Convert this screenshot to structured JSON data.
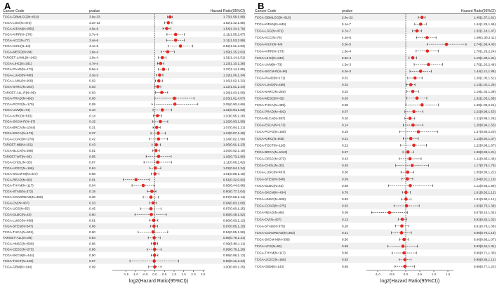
{
  "chart_data": [
    {
      "type": "forest",
      "panel": "A",
      "headers": {
        "name": "Cancer Code",
        "pvalue": "pvalue",
        "hr": "Hazard Ratio(95%CI)"
      },
      "xlabel": "log2(Hazard Ratio(95%CI))",
      "xlim": [
        -2.2,
        2.6
      ],
      "xticks": [
        "-1.5",
        "-1.0",
        "-0.5",
        "0.0",
        "0.5",
        "1.0",
        "1.5",
        "2.0",
        "2.5"
      ],
      "rows": [
        {
          "name": "TCGA-GBMLGG(N=619)",
          "p": "3.9e-33",
          "hr": "1.73(1.58,1.89)",
          "est": 0.79,
          "lo": 0.66,
          "hi": 0.92
        },
        {
          "name": "TCGA-LGG(N=474)",
          "p": "3.2e-13",
          "hr": "1.62(1.42,1.85)",
          "est": 0.7,
          "lo": 0.51,
          "hi": 0.89
        },
        {
          "name": "TCGA-KIPAN(N=855)",
          "p": "4.9e-9",
          "hr": "1.54(1.34,1.78)",
          "est": 0.62,
          "lo": 0.42,
          "hi": 0.83
        },
        {
          "name": "TCGA-KIRP(N=276)",
          "p": "2.7e-6",
          "hr": "2.11(1.55,2.87)",
          "est": 1.08,
          "lo": 0.63,
          "hi": 1.52
        },
        {
          "name": "TCGA-ACC(N=77)",
          "p": "3.4e-6",
          "hr": "2.11(1.53,2.89)",
          "est": 1.08,
          "lo": 0.61,
          "hi": 1.53
        },
        {
          "name": "TCGA-KICH(N=64)",
          "p": "4.1e-5",
          "hr": "2.52(1.61,3.93)",
          "est": 1.33,
          "lo": 0.69,
          "hi": 1.97
        },
        {
          "name": "TCGA-MESO(N=84)",
          "p": "1.6e-4",
          "hr": "1.59(1.25,2.02)",
          "est": 0.67,
          "lo": 0.32,
          "hi": 1.01
        },
        {
          "name": "TARGET-LAML(N=142)",
          "p": "1.9e-4",
          "hr": "1.31(1.14,1.51)",
          "est": 0.39,
          "lo": 0.19,
          "hi": 0.59
        },
        {
          "name": "TCGA-LIHC(N=341)",
          "p": "4.7e-4",
          "hr": "1.23(1.10,1.38)",
          "est": 0.3,
          "lo": 0.14,
          "hi": 0.46
        },
        {
          "name": "TCGA-PAAD(N=172)",
          "p": "9.6e-4",
          "hr": "1.37(1.14,1.65)",
          "est": 0.45,
          "lo": 0.19,
          "hi": 0.72
        },
        {
          "name": "TCGA-LUAD(N=490)",
          "p": "3.3e-3",
          "hr": "1.19(1.06,1.34)",
          "est": 0.25,
          "lo": 0.08,
          "hi": 0.42
        },
        {
          "name": "TCGA-LAML(N=209)",
          "p": "0.02",
          "hr": "1.16(1.02,1.32)",
          "est": 0.21,
          "lo": 0.03,
          "hi": 0.4
        },
        {
          "name": "TCGA-SARC(N=254)",
          "p": "0.03",
          "hr": "1.12(1.01,1.24)",
          "est": 0.16,
          "lo": 0.01,
          "hi": 0.31
        },
        {
          "name": "TARGET-ALL-R(N=99)",
          "p": "0.03",
          "hr": "1.28(1.03,1.59)",
          "est": 0.36,
          "lo": 0.04,
          "hi": 0.67
        },
        {
          "name": "TCGA-PRAD(N=492)",
          "p": "0.06",
          "hr": "2.03(1.01,4.07)",
          "est": 1.02,
          "lo": 0.01,
          "hi": 2.03
        },
        {
          "name": "TCGA-PCPG(N=170)",
          "p": "0.09",
          "hr": "2.05(0.90,4.69)",
          "est": 1.04,
          "lo": -0.15,
          "hi": 2.23
        },
        {
          "name": "TCGA-UVM(N=74)",
          "p": "0.10",
          "hr": "1.31(0.94,1.83)",
          "est": 0.39,
          "lo": -0.09,
          "hi": 0.87
        },
        {
          "name": "TCGA-KIRC(N=515)",
          "p": "0.14",
          "hr": "1.10(0.95,1.28)",
          "est": 0.14,
          "lo": -0.07,
          "hi": 0.36
        },
        {
          "name": "TCGA-SKCM-P(N=97)",
          "p": "0.15",
          "hr": "1.22(0.93,1.59)",
          "est": 0.29,
          "lo": -0.1,
          "hi": 0.67
        },
        {
          "name": "TCGA-BRCA(N=1044)",
          "p": "0.31",
          "hr": "1.07(0.94,1.21)",
          "est": 0.1,
          "lo": -0.09,
          "hi": 0.28
        },
        {
          "name": "TCGA-ESCA(N=175)",
          "p": "0.37",
          "hr": "1.13(0.87,1.46)",
          "est": 0.18,
          "lo": -0.2,
          "hi": 0.55
        },
        {
          "name": "TCGA-COAD(N=278)",
          "p": "0.42",
          "hr": "1.14(0.82,1.58)",
          "est": 0.19,
          "lo": -0.29,
          "hi": 0.66
        },
        {
          "name": "TARGET-NB(N=151)",
          "p": "0.43",
          "hr": "1.06(0.91,1.23)",
          "est": 0.08,
          "lo": -0.14,
          "hi": 0.3
        },
        {
          "name": "TCGA-BLCA(N=398)",
          "p": "0.51",
          "hr": "1.04(0.92,1.18)",
          "est": 0.06,
          "lo": -0.12,
          "hi": 0.24
        },
        {
          "name": "TARGET-WT(N=80)",
          "p": "0.55",
          "hr": "1.15(0.73,1.80)",
          "est": 0.2,
          "lo": -0.45,
          "hi": 0.85
        },
        {
          "name": "TCGA-CHOL(N=33)",
          "p": "0.67",
          "hr": "1.11(0.68,1.82)",
          "est": 0.15,
          "lo": -0.56,
          "hi": 0.86
        },
        {
          "name": "TCGA-UCEC(N=166)",
          "p": "0.84",
          "hr": "1.02(0.84,1.24)",
          "est": 0.03,
          "lo": -0.25,
          "hi": 0.31
        },
        {
          "name": "TCGA-SKCM-M(N=347)",
          "p": "0.88",
          "hr": "1.01(0.88,1.16)",
          "est": 0.01,
          "lo": -0.18,
          "hi": 0.21
        },
        {
          "name": "TCGA-READ(N=90)",
          "p": "0.01",
          "hr": "0.51(0.32,0.82)",
          "est": -0.97,
          "lo": -1.64,
          "hi": -0.29
        },
        {
          "name": "TCGA-THYM(N=117)",
          "p": "0.04",
          "hr": "0.66(0.44,0.98)",
          "est": -0.6,
          "lo": -1.18,
          "hi": -0.03
        },
        {
          "name": "TCGA-STAD(N=372)",
          "p": "0.18",
          "hr": "0.90(0.77,1.04)",
          "est": -0.15,
          "lo": -0.38,
          "hi": 0.06
        },
        {
          "name": "TCGA-COADREAD(N=368)",
          "p": "0.30",
          "hr": "0.87(0.66,1.14)",
          "est": -0.2,
          "lo": -0.6,
          "hi": 0.19
        },
        {
          "name": "TCGA-OV(N=407)",
          "p": "0.33",
          "hr": "0.94(0.83,1.06)",
          "est": -0.09,
          "lo": -0.27,
          "hi": 0.08
        },
        {
          "name": "TCGA-UCS(N=55)",
          "p": "0.45",
          "hr": "0.87(0.60,1.25)",
          "est": -0.2,
          "lo": -0.74,
          "hi": 0.32
        },
        {
          "name": "TCGA-DLBC(N=44)",
          "p": "0.60",
          "hr": "0.88(0.49,1.52)",
          "est": -0.18,
          "lo": -1.03,
          "hi": 0.6
        },
        {
          "name": "TCGA-LUSC(N=468)",
          "p": "0.61",
          "hr": "0.96(0.83,1.12)",
          "est": -0.06,
          "lo": -0.27,
          "hi": 0.16
        },
        {
          "name": "TCGA-STES(N=547)",
          "p": "0.66",
          "hr": "0.97(0.85,1.10)",
          "est": -0.04,
          "lo": -0.23,
          "hi": 0.14
        },
        {
          "name": "TCGA-THCA(N=501)",
          "p": "0.80",
          "hr": "0.94(0.55,1.59)",
          "est": -0.09,
          "lo": -0.86,
          "hi": 0.67
        },
        {
          "name": "TARGET-ALL(N=86)",
          "p": "0.84",
          "hr": "0.98(0.79,1.21)",
          "est": -0.03,
          "lo": -0.34,
          "hi": 0.28
        },
        {
          "name": "TCGA-HNSC(N=509)",
          "p": "0.86",
          "hr": "0.99(0.88,1.11)",
          "est": -0.01,
          "lo": -0.18,
          "hi": 0.15
        },
        {
          "name": "TCGA-CESC(N=273)",
          "p": "0.88",
          "hr": "0.99(0.76,1.26)",
          "est": -0.01,
          "lo": -0.4,
          "hi": 0.33
        },
        {
          "name": "TCGA-SKCM(N=444)",
          "p": "0.90",
          "hr": "0.99(0.88,1.12)",
          "est": -0.01,
          "lo": -0.18,
          "hi": 0.16
        },
        {
          "name": "TCGA-TGCT(N=128)",
          "p": "0.97",
          "hr": "0.98(0.41,2.34)",
          "est": -0.03,
          "lo": -1.29,
          "hi": 1.23
        },
        {
          "name": "TCGA-GBM(N=144)",
          "p": "0.99",
          "hr": "1.00(0.80,1.25)",
          "est": 0.0,
          "lo": -0.32,
          "hi": 0.32
        }
      ]
    },
    {
      "type": "forest",
      "panel": "B",
      "headers": {
        "name": "Cancer Code",
        "pvalue": "pvalue",
        "hr": "Hazard Ratio(95%CI)"
      },
      "xlabel": "log2(Hazard Ratio(95%CI))",
      "xlim": [
        -1.4,
        1.7
      ],
      "xticks": [
        "-1.0",
        "-0.5",
        "0.0",
        "0.5",
        "1.0",
        "1.5"
      ],
      "rows": [
        {
          "name": "TCGA-GBMLGG(N=616)",
          "p": "2.9e-22",
          "hr": "1.49(1.37,1.61)",
          "est": 0.58,
          "lo": 0.45,
          "hi": 0.69
        },
        {
          "name": "TCGA-KIPAN(N=845)",
          "p": "5.1e-7",
          "hr": "1.44(1.25,1.66)",
          "est": 0.53,
          "lo": 0.32,
          "hi": 0.73
        },
        {
          "name": "TCGA-LGG(N=472)",
          "p": "6.7e-7",
          "hr": "1.32(1.18,1.47)",
          "est": 0.4,
          "lo": 0.24,
          "hi": 0.56
        },
        {
          "name": "TCGA-ACC(N=76)",
          "p": "4.2e-5",
          "hr": "1.69(1.30,2.11)",
          "est": 0.76,
          "lo": 0.38,
          "hi": 1.08
        },
        {
          "name": "TCGA-KICH(N=64)",
          "p": "5.3e-5",
          "hr": "2.74(1.69,4.43)",
          "est": 1.45,
          "lo": 0.76,
          "hi": 2.15
        },
        {
          "name": "TCGA-KIRP(N=273)",
          "p": "1.8e-4",
          "hr": "1.70(1.29,2.24)",
          "est": 0.77,
          "lo": 0.37,
          "hi": 1.16
        },
        {
          "name": "TCGA-LIHC(N=340)",
          "p": "5.8e-4",
          "hr": "1.19(1.08,1.31)",
          "est": 0.25,
          "lo": 0.11,
          "hi": 0.39
        },
        {
          "name": "TCGA-UVM(N=73)",
          "p": "1.3e-3",
          "hr": "1.75(1.23,2.48)",
          "est": 0.81,
          "lo": 0.3,
          "hi": 1.31
        },
        {
          "name": "TCGA-SKCM-P(N=96)",
          "p": "6.2e-3",
          "hr": "1.44(1.11,1.88)",
          "est": 0.53,
          "lo": 0.15,
          "hi": 0.91
        },
        {
          "name": "TCGA-PAAD(N=171)",
          "p": "0.01",
          "hr": "1.26(1.05,1.51)",
          "est": 0.33,
          "lo": 0.07,
          "hi": 0.59
        },
        {
          "name": "TCGA-LUAD(N=486)",
          "p": "0.02",
          "hr": "1.13(1.02,1.26)",
          "est": 0.18,
          "lo": 0.03,
          "hi": 0.33
        },
        {
          "name": "TCGA-SARC(N=250)",
          "p": "0.02",
          "hr": "1.19(1.03,1.38)",
          "est": 0.25,
          "lo": 0.04,
          "hi": 0.46
        },
        {
          "name": "TCGA-MESO(N=82)",
          "p": "0.03",
          "hr": "1.32(1.03,1.68)",
          "est": 0.4,
          "lo": 0.04,
          "hi": 0.75
        },
        {
          "name": "TCGA-THCA(N=499)",
          "p": "0.05",
          "hr": "1.49(1.00,2.24)",
          "est": 0.58,
          "lo": 0.0,
          "hi": 1.16
        },
        {
          "name": "TCGA-PRAD(N=492)",
          "p": "0.07",
          "hr": "1.22(0.98,1.53)",
          "est": 0.29,
          "lo": -0.03,
          "hi": 0.61
        },
        {
          "name": "TCGA-BLCA(N=397)",
          "p": "0.10",
          "hr": "1.11(0.98,1.25)",
          "est": 0.15,
          "lo": -0.03,
          "hi": 0.32
        },
        {
          "name": "TCGA-ESCA(N=173)",
          "p": "0.14",
          "hr": "1.20(0.94,1.53)",
          "est": 0.26,
          "lo": -0.09,
          "hi": 0.61
        },
        {
          "name": "TCGA-PCPG(N=168)",
          "p": "0.19",
          "hr": "1.37(0.86,2.20)",
          "est": 0.45,
          "lo": -0.22,
          "hi": 1.14
        },
        {
          "name": "TCGA-KIRC(N=508)",
          "p": "0.21",
          "hr": "1.13(0.94,1.37)",
          "est": 0.18,
          "lo": -0.09,
          "hi": 0.45
        },
        {
          "name": "TCGA-TGCT(N=126)",
          "p": "0.22",
          "hr": "1.22(0.88,1.67)",
          "est": 0.29,
          "lo": -0.18,
          "hi": 0.74
        },
        {
          "name": "TCGA-BRCA(N=1043)",
          "p": "0.37",
          "hr": "1.06(0.93,1.21)",
          "est": 0.08,
          "lo": -0.1,
          "hi": 0.28
        },
        {
          "name": "TCGA-CESC(N=273)",
          "p": "0.43",
          "hr": "1.11(0.85,1.46)",
          "est": 0.15,
          "lo": -0.23,
          "hi": 0.55
        },
        {
          "name": "TCGA-CHOL(N=33)",
          "p": "0.45",
          "hr": "1.17(0.78,1.75)",
          "est": 0.23,
          "lo": -0.36,
          "hi": 0.81
        },
        {
          "name": "TCGA-LUSC(N=467)",
          "p": "0.50",
          "hr": "1.05(0.89,1.22)",
          "est": 0.07,
          "lo": -0.17,
          "hi": 0.29
        },
        {
          "name": "TCGA-STES(N=548)",
          "p": "0.59",
          "hr": "1.04(0.91,1.19)",
          "est": 0.06,
          "lo": -0.14,
          "hi": 0.25
        },
        {
          "name": "TCGA-DLBC(N=43)",
          "p": "0.68",
          "hr": "1.12(0.65,1.95)",
          "est": 0.16,
          "lo": -0.62,
          "hi": 0.96
        },
        {
          "name": "TCGA-SKCM(N=434)",
          "p": "0.78",
          "hr": "1.01(0.92,1.12)",
          "est": 0.01,
          "lo": -0.12,
          "hi": 0.16
        },
        {
          "name": "TCGA-HNSC(N=508)",
          "p": "0.83",
          "hr": "1.01(0.90,1.14)",
          "est": 0.01,
          "lo": -0.15,
          "hi": 0.19
        },
        {
          "name": "TCGA-COAD(N=275)",
          "p": "0.92",
          "hr": "1.02(0.75,1.39)",
          "est": 0.03,
          "lo": -0.42,
          "hi": 0.48
        },
        {
          "name": "TCGA-READ(N=88)",
          "p": "0.09",
          "hr": "0.67(0.43,1.04)",
          "est": -0.58,
          "lo": -1.22,
          "hi": 0.06
        },
        {
          "name": "TCGA-OV(N=407)",
          "p": "0.13",
          "hr": "0.92(0.83,1.02)",
          "est": -0.12,
          "lo": -0.27,
          "hi": 0.03
        },
        {
          "name": "TCGA-STAD(N=375)",
          "p": "0.28",
          "hr": "0.91(0.78,1.08)",
          "est": -0.14,
          "lo": -0.36,
          "hi": 0.11
        },
        {
          "name": "TCGA-COADREAD(N=363)",
          "p": "0.41",
          "hr": "0.90(0.70,1.15)",
          "est": -0.15,
          "lo": -0.51,
          "hi": 0.2
        },
        {
          "name": "TCGA-SKCM-M(N=338)",
          "p": "0.50",
          "hr": "0.96(0.86,1.07)",
          "est": -0.06,
          "lo": -0.22,
          "hi": 0.1
        },
        {
          "name": "TCGA-UCS(N=55)",
          "p": "0.69",
          "hr": "0.93(0.64,1.34)",
          "est": -0.1,
          "lo": -0.64,
          "hi": 0.42
        },
        {
          "name": "TCGA-THYM(N=117)",
          "p": "0.80",
          "hr": "0.96(0.71,1.30)",
          "est": -0.06,
          "lo": -0.49,
          "hi": 0.38
        },
        {
          "name": "TCGA-UCEC(N=166)",
          "p": "0.83",
          "hr": "0.98(0.85,1.14)",
          "est": -0.03,
          "lo": -0.23,
          "hi": 0.19
        },
        {
          "name": "TCGA-GBM(N=143)",
          "p": "0.85",
          "hr": "0.98(0.77,1.24)",
          "est": -0.03,
          "lo": -0.38,
          "hi": 0.31
        }
      ]
    }
  ]
}
